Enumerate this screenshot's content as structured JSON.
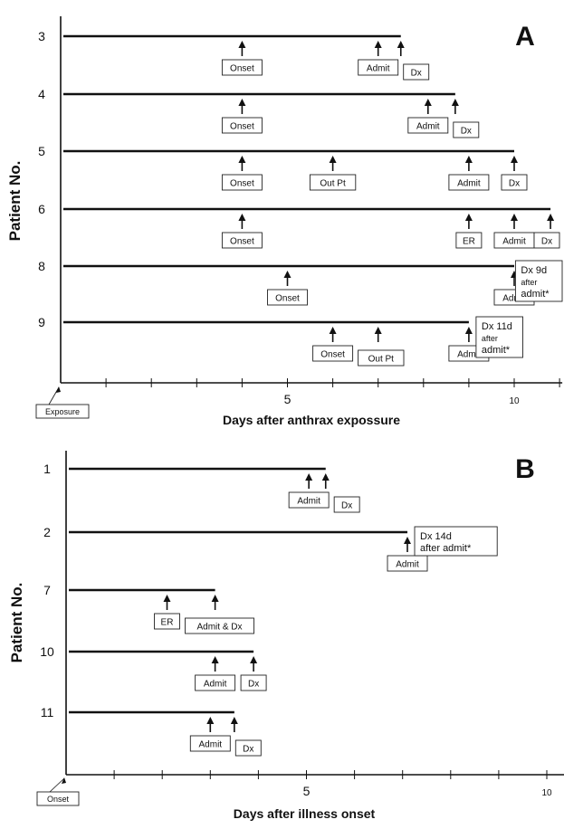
{
  "colors": {
    "ink": "#111111"
  },
  "chart_data": [
    {
      "type": "timeline",
      "panel_letter": "A",
      "xlabel": "Days after anthrax expossure",
      "ylabel": "Patient No.",
      "xlim": [
        0,
        11
      ],
      "x_ticks": [
        0,
        1,
        2,
        3,
        4,
        5,
        6,
        7,
        8,
        9,
        10,
        11
      ],
      "x_tick_labels": [
        {
          "x": 5,
          "text": "5"
        },
        {
          "x": 10,
          "text": "10"
        }
      ],
      "origin_label": "Exposure",
      "patients": [
        {
          "id": "3",
          "end": 7.5,
          "events": [
            {
              "x": 4,
              "label": "Onset"
            },
            {
              "x": 7,
              "label": "Admit"
            },
            {
              "x": 7.5,
              "label": "Dx"
            }
          ]
        },
        {
          "id": "4",
          "end": 8.7,
          "events": [
            {
              "x": 4,
              "label": "Onset"
            },
            {
              "x": 8.1,
              "label": "Admit"
            },
            {
              "x": 8.7,
              "label": "Dx"
            }
          ]
        },
        {
          "id": "5",
          "end": 10,
          "events": [
            {
              "x": 4,
              "label": "Onset"
            },
            {
              "x": 6,
              "label": "Out Pt"
            },
            {
              "x": 9,
              "label": "Admit"
            },
            {
              "x": 10,
              "label": "Dx"
            }
          ]
        },
        {
          "id": "6",
          "end": 10.8,
          "events": [
            {
              "x": 4,
              "label": "Onset"
            },
            {
              "x": 9,
              "label": "ER"
            },
            {
              "x": 10,
              "label": "Admit"
            },
            {
              "x": 10.8,
              "label": "Dx"
            }
          ]
        },
        {
          "id": "8",
          "end": 10,
          "events": [
            {
              "x": 5,
              "label": "Onset"
            },
            {
              "x": 10,
              "label": "Admit"
            }
          ],
          "note": [
            "Dx 9d",
            "after",
            "admit*"
          ]
        },
        {
          "id": "9",
          "end": 9,
          "events": [
            {
              "x": 6,
              "label": "Onset"
            },
            {
              "x": 7,
              "label": "Out Pt"
            },
            {
              "x": 9,
              "label": "Admit"
            }
          ],
          "note": [
            "Dx 11d",
            "after",
            "admit*"
          ]
        }
      ]
    },
    {
      "type": "timeline",
      "panel_letter": "B",
      "xlabel": "Days after illness onset",
      "ylabel": "Patient No.",
      "xlim": [
        0,
        11
      ],
      "x_ticks": [
        0,
        1,
        2,
        3,
        4,
        5,
        6,
        7,
        8,
        9,
        10,
        11
      ],
      "x_tick_labels": [
        {
          "x": 5,
          "text": "5"
        },
        {
          "x": 10,
          "text": "10"
        }
      ],
      "origin_label": "Onset",
      "patients": [
        {
          "id": "1",
          "end": 5.4,
          "events": [
            {
              "x": 5.05,
              "label": "Admit"
            },
            {
              "x": 5.4,
              "label": "Dx"
            }
          ]
        },
        {
          "id": "2",
          "end": 7.1,
          "events": [
            {
              "x": 7.1,
              "label": "Admit"
            }
          ],
          "note": [
            "Dx 14d",
            "after admit*"
          ]
        },
        {
          "id": "7",
          "end": 3.1,
          "events": [
            {
              "x": 2.1,
              "label": "ER"
            },
            {
              "x": 3.1,
              "label": "Admit & Dx"
            }
          ]
        },
        {
          "id": "10",
          "end": 3.9,
          "events": [
            {
              "x": 3.1,
              "label": "Admit"
            },
            {
              "x": 3.9,
              "label": "Dx"
            }
          ]
        },
        {
          "id": "11",
          "end": 3.5,
          "events": [
            {
              "x": 3.0,
              "label": "Admit"
            },
            {
              "x": 3.5,
              "label": "Dx"
            }
          ]
        }
      ]
    }
  ]
}
